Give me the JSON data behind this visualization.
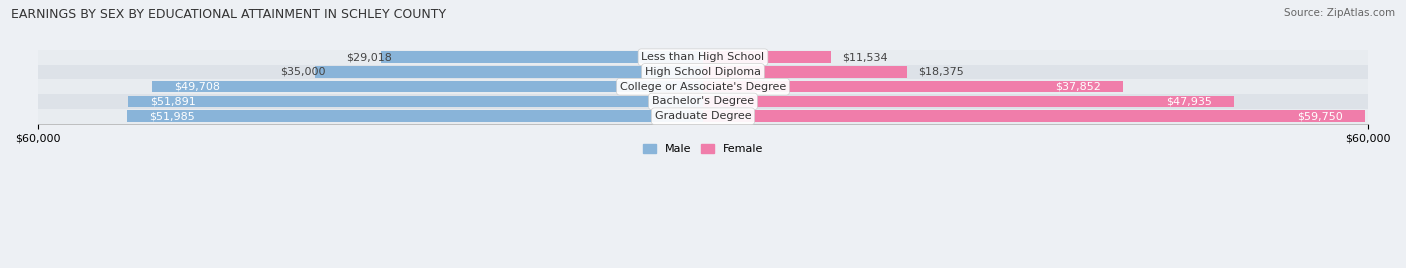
{
  "title": "EARNINGS BY SEX BY EDUCATIONAL ATTAINMENT IN SCHLEY COUNTY",
  "source": "Source: ZipAtlas.com",
  "categories": [
    "Less than High School",
    "High School Diploma",
    "College or Associate's Degree",
    "Bachelor's Degree",
    "Graduate Degree"
  ],
  "male_values": [
    29018,
    35000,
    49708,
    51891,
    51985
  ],
  "female_values": [
    11534,
    18375,
    37852,
    47935,
    59750
  ],
  "male_color": "#89b4d9",
  "female_color": "#f07daa",
  "male_label": "Male",
  "female_label": "Female",
  "xlim": 60000,
  "bar_height": 0.78,
  "row_bg_light": "#e8ecf0",
  "row_bg_dark": "#dde2e8",
  "fig_bg": "#edf0f4",
  "title_fontsize": 9,
  "source_fontsize": 7.5,
  "label_fontsize": 8,
  "value_fontsize": 8,
  "axis_fontsize": 8
}
